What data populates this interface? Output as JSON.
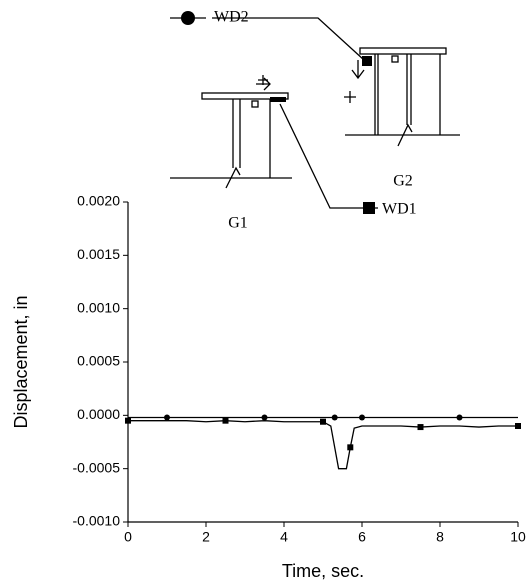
{
  "chart_data": {
    "type": "line",
    "xlabel": "Time, sec.",
    "ylabel": "Displacement, in",
    "annotations": [
      "G1",
      "G2"
    ],
    "x": [
      0,
      0.5,
      1,
      1.5,
      2,
      2.5,
      3,
      3.5,
      4,
      4.5,
      5,
      5.2,
      5.3,
      5.4,
      5.6,
      5.7,
      5.8,
      6,
      6.5,
      7,
      7.5,
      8,
      8.5,
      9,
      9.5,
      10
    ],
    "series": [
      {
        "name": "WD1",
        "color": "#000000",
        "marker": "square",
        "values": [
          -5e-05,
          -5e-05,
          -5e-05,
          -5e-05,
          -6e-05,
          -5e-05,
          -6e-05,
          -5e-05,
          -6e-05,
          -6e-05,
          -6e-05,
          -0.0001,
          -0.0003,
          -0.0005,
          -0.0005,
          -0.0003,
          -0.00012,
          -0.0001,
          -0.0001,
          -0.0001,
          -0.00011,
          -0.0001,
          -0.0001,
          -0.00011,
          -0.0001,
          -0.0001
        ]
      },
      {
        "name": "WD2",
        "color": "#000000",
        "marker": "circle",
        "values": [
          -2e-05,
          -2e-05,
          -2e-05,
          -2e-05,
          -2e-05,
          -2e-05,
          -2e-05,
          -2e-05,
          -2e-05,
          -2e-05,
          -2e-05,
          -2e-05,
          -2e-05,
          -2e-05,
          -2e-05,
          -2e-05,
          -2e-05,
          -2e-05,
          -2e-05,
          -2e-05,
          -2e-05,
          -2e-05,
          -2e-05,
          -2e-05,
          -2e-05,
          -2e-05
        ]
      }
    ],
    "xlim": [
      0,
      10
    ],
    "xticks": [
      0,
      2,
      4,
      6,
      8,
      10
    ],
    "ylim": [
      -0.001,
      0.002
    ],
    "yticks": [
      {
        "value": -0.001,
        "label": "-0.0010"
      },
      {
        "value": -0.0005,
        "label": "-0.0005"
      },
      {
        "value": 0,
        "label": "0.0000"
      },
      {
        "value": 0.0005,
        "label": "0.0005"
      },
      {
        "value": 0.001,
        "label": "0.0010"
      },
      {
        "value": 0.0015,
        "label": "0.0015"
      },
      {
        "value": 0.002,
        "label": "0.0020"
      }
    ],
    "grid": false
  }
}
